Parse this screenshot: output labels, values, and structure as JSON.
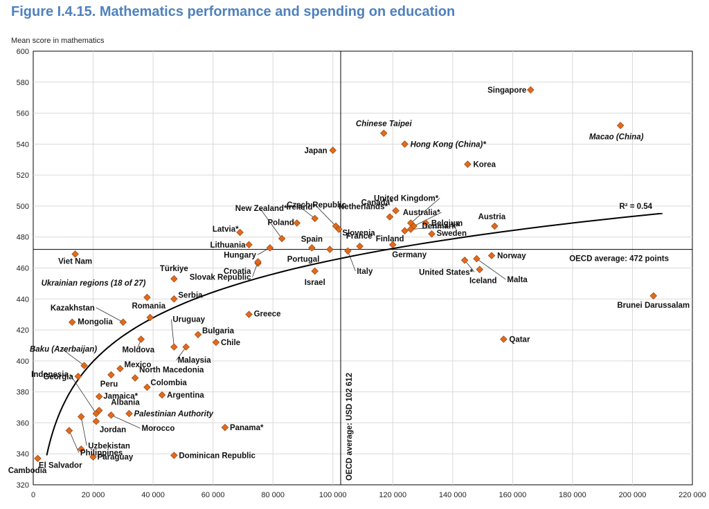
{
  "header": {
    "title": "Figure I.4.15. Mathematics performance and spending on education"
  },
  "chart_data": {
    "type": "scatter",
    "title": "Figure I.4.15. Mathematics performance and spending on education",
    "ylabel": "Mean score in mathematics",
    "xlabel": "",
    "xlim": [
      0,
      220000
    ],
    "ylim": [
      320,
      600
    ],
    "xticks": [
      0,
      20000,
      40000,
      60000,
      80000,
      100000,
      120000,
      140000,
      160000,
      180000,
      200000,
      220000
    ],
    "xtick_labels": [
      "0",
      "20 000",
      "40 000",
      "60 000",
      "80 000",
      "100 000",
      "120 000",
      "140 000",
      "160 000",
      "180 000",
      "200 000",
      "220 000"
    ],
    "yticks": [
      320,
      340,
      360,
      380,
      400,
      420,
      440,
      460,
      480,
      500,
      520,
      540,
      560,
      580,
      600
    ],
    "grid": true,
    "marker_color": "#e26a1c",
    "marker_shape": "diamond",
    "reference_lines": {
      "oecd_average_score": 472,
      "oecd_average_score_label": "OECD average: 472 points",
      "oecd_average_spending": 102612,
      "oecd_average_spending_label": "OECD average: USD 102 612"
    },
    "trend": {
      "label": "R² = 0.54",
      "type": "logarithmic",
      "r2": 0.54
    },
    "points": [
      {
        "label": "Singapore",
        "x": 166000,
        "y": 575
      },
      {
        "label": "Macao (China)",
        "x": 196000,
        "y": 552,
        "italic": true
      },
      {
        "label": "Chinese Taipei",
        "x": 117000,
        "y": 547,
        "italic": true
      },
      {
        "label": "Hong Kong (China)*",
        "x": 124000,
        "y": 540,
        "italic": true
      },
      {
        "label": "Japan",
        "x": 100000,
        "y": 536
      },
      {
        "label": "Korea",
        "x": 145000,
        "y": 527
      },
      {
        "label": "Canada*",
        "x": 121000,
        "y": 497
      },
      {
        "label": "United Kingdom*",
        "x": 126000,
        "y": 489
      },
      {
        "label": "Australia*",
        "x": 127000,
        "y": 487
      },
      {
        "label": "Denmark*",
        "x": 126000,
        "y": 485
      },
      {
        "label": "Belgium",
        "x": 131000,
        "y": 489
      },
      {
        "label": "Netherlands*",
        "x": 119000,
        "y": 493
      },
      {
        "label": "Czech Republic",
        "x": 101000,
        "y": 487
      },
      {
        "label": "Ireland*",
        "x": 94000,
        "y": 492
      },
      {
        "label": "Slovenia",
        "x": 102000,
        "y": 485
      },
      {
        "label": "Finland",
        "x": 124000,
        "y": 484
      },
      {
        "label": "Sweden",
        "x": 133000,
        "y": 482
      },
      {
        "label": "Austria",
        "x": 154000,
        "y": 487
      },
      {
        "label": "Poland",
        "x": 88000,
        "y": 489
      },
      {
        "label": "New Zealand*",
        "x": 83000,
        "y": 479
      },
      {
        "label": "Latvia*",
        "x": 69000,
        "y": 483
      },
      {
        "label": "Lithuania",
        "x": 72000,
        "y": 475
      },
      {
        "label": "Hungary",
        "x": 79000,
        "y": 473
      },
      {
        "label": "Spain",
        "x": 93000,
        "y": 473
      },
      {
        "label": "Portugal",
        "x": 99000,
        "y": 472
      },
      {
        "label": "France",
        "x": 109000,
        "y": 474
      },
      {
        "label": "Germany",
        "x": 120000,
        "y": 475
      },
      {
        "label": "Italy",
        "x": 105000,
        "y": 471
      },
      {
        "label": "Croatia",
        "x": 75000,
        "y": 463
      },
      {
        "label": "Slovak Republic",
        "x": 75000,
        "y": 464
      },
      {
        "label": "Israel",
        "x": 94000,
        "y": 458
      },
      {
        "label": "United States*",
        "x": 144000,
        "y": 465
      },
      {
        "label": "Norway",
        "x": 153000,
        "y": 468
      },
      {
        "label": "Iceland",
        "x": 149000,
        "y": 459
      },
      {
        "label": "Malta",
        "x": 148000,
        "y": 466
      },
      {
        "label": "Viet Nam",
        "x": 14000,
        "y": 469
      },
      {
        "label": "Türkiye",
        "x": 47000,
        "y": 453
      },
      {
        "label": "Ukrainian regions (18 of 27)",
        "x": 38000,
        "y": 441,
        "italic": true
      },
      {
        "label": "Serbia",
        "x": 47000,
        "y": 440
      },
      {
        "label": "Brunei Darussalam",
        "x": 207000,
        "y": 442
      },
      {
        "label": "Kazakhstan",
        "x": 30000,
        "y": 425
      },
      {
        "label": "Mongolia",
        "x": 13000,
        "y": 425
      },
      {
        "label": "Romania",
        "x": 39000,
        "y": 428
      },
      {
        "label": "Greece",
        "x": 72000,
        "y": 430
      },
      {
        "label": "Uruguay",
        "x": 47000,
        "y": 409
      },
      {
        "label": "Bulgaria",
        "x": 55000,
        "y": 417
      },
      {
        "label": "Chile",
        "x": 61000,
        "y": 412
      },
      {
        "label": "Malaysia",
        "x": 51000,
        "y": 409
      },
      {
        "label": "Moldova",
        "x": 36000,
        "y": 414
      },
      {
        "label": "Qatar",
        "x": 157000,
        "y": 414
      },
      {
        "label": "Baku (Azerbaijan)",
        "x": 17000,
        "y": 397,
        "italic": true
      },
      {
        "label": "Mexico",
        "x": 29000,
        "y": 395
      },
      {
        "label": "Georgia",
        "x": 15000,
        "y": 390
      },
      {
        "label": "Peru",
        "x": 26000,
        "y": 391
      },
      {
        "label": "North Macedonia",
        "x": 34000,
        "y": 389
      },
      {
        "label": "Colombia",
        "x": 38000,
        "y": 383
      },
      {
        "label": "Indonesia",
        "x": 21000,
        "y": 366
      },
      {
        "label": "Jamaica*",
        "x": 22000,
        "y": 377
      },
      {
        "label": "Argentina",
        "x": 43000,
        "y": 378
      },
      {
        "label": "Albania",
        "x": 22000,
        "y": 368
      },
      {
        "label": "Palestinian Authority",
        "x": 32000,
        "y": 366,
        "italic": true
      },
      {
        "label": "Jordan",
        "x": 21000,
        "y": 361
      },
      {
        "label": "Morocco",
        "x": 26000,
        "y": 365
      },
      {
        "label": "Uzbekistan",
        "x": 16000,
        "y": 364
      },
      {
        "label": "Panama*",
        "x": 64000,
        "y": 357
      },
      {
        "label": "Philippines",
        "x": 12000,
        "y": 355
      },
      {
        "label": "El Salvador",
        "x": 16000,
        "y": 343
      },
      {
        "label": "Paraguay",
        "x": 20000,
        "y": 338
      },
      {
        "label": "Dominican Republic",
        "x": 47000,
        "y": 339
      },
      {
        "label": "Cambodia",
        "x": 1500,
        "y": 337
      }
    ]
  }
}
